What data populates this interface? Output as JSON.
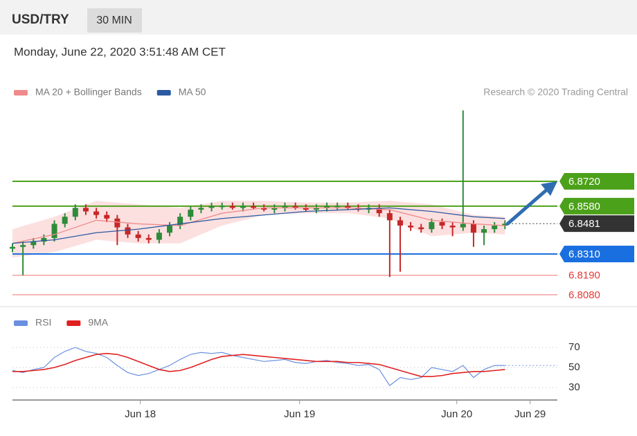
{
  "header": {
    "symbol": "USD/TRY",
    "interval": "30 MIN",
    "timestamp": "Monday, June 22, 2020 3:51:48 AM CET"
  },
  "chart_data": [
    {
      "type": "candlestick",
      "credit": "Research © 2020 Trading Central",
      "ylim": [
        6.8025,
        6.9157
      ],
      "legend": [
        {
          "name": "MA 20 + Bollinger Bands",
          "color": "#f08a8a"
        },
        {
          "name": "MA 50",
          "color": "#2a5aa0"
        }
      ],
      "up_color": "#2e8b3a",
      "down_color": "#c62828",
      "open": [
        6.834,
        6.835,
        6.836,
        6.838,
        6.84,
        6.848,
        6.852,
        6.857,
        6.855,
        6.853,
        6.851,
        6.846,
        6.842,
        6.84,
        6.839,
        6.843,
        6.847,
        6.852,
        6.856,
        6.857,
        6.858,
        6.858,
        6.857,
        6.858,
        6.857,
        6.856,
        6.857,
        6.858,
        6.857,
        6.856,
        6.857,
        6.858,
        6.858,
        6.857,
        6.856,
        6.857,
        6.854,
        6.85,
        6.847,
        6.846,
        6.845,
        6.849,
        6.847,
        6.846,
        6.848,
        6.843,
        6.845,
        6.847
      ],
      "high": [
        6.837,
        6.838,
        6.84,
        6.842,
        6.85,
        6.854,
        6.859,
        6.859,
        6.857,
        6.855,
        6.853,
        6.848,
        6.844,
        6.842,
        6.845,
        6.849,
        6.854,
        6.858,
        6.859,
        6.86,
        6.86,
        6.86,
        6.86,
        6.86,
        6.859,
        6.859,
        6.86,
        6.86,
        6.859,
        6.859,
        6.86,
        6.86,
        6.86,
        6.859,
        6.859,
        6.859,
        6.856,
        6.852,
        6.849,
        6.848,
        6.851,
        6.851,
        6.849,
        6.912,
        6.85,
        6.847,
        6.849,
        6.85
      ],
      "low": [
        6.832,
        6.819,
        6.834,
        6.836,
        6.838,
        6.846,
        6.85,
        6.853,
        6.851,
        6.849,
        6.836,
        6.84,
        6.838,
        6.837,
        6.837,
        6.841,
        6.845,
        6.85,
        6.854,
        6.855,
        6.856,
        6.856,
        6.855,
        6.856,
        6.855,
        6.854,
        6.855,
        6.856,
        6.855,
        6.854,
        6.855,
        6.856,
        6.856,
        6.855,
        6.854,
        6.852,
        6.818,
        6.821,
        6.844,
        6.843,
        6.843,
        6.845,
        6.841,
        6.844,
        6.835,
        6.836,
        6.843,
        6.845
      ],
      "close": [
        6.835,
        6.836,
        6.838,
        6.84,
        6.848,
        6.852,
        6.857,
        6.855,
        6.853,
        6.851,
        6.846,
        6.842,
        6.84,
        6.839,
        6.843,
        6.847,
        6.852,
        6.856,
        6.857,
        6.858,
        6.858,
        6.857,
        6.858,
        6.857,
        6.856,
        6.857,
        6.858,
        6.857,
        6.856,
        6.857,
        6.858,
        6.858,
        6.857,
        6.856,
        6.857,
        6.854,
        6.85,
        6.847,
        6.846,
        6.845,
        6.849,
        6.847,
        6.846,
        6.848,
        6.843,
        6.845,
        6.847,
        6.8481
      ],
      "lines_x": [
        0,
        4,
        8,
        12,
        16,
        20,
        24,
        28,
        32,
        36,
        40,
        44,
        47
      ],
      "ma20": [
        6.837,
        6.842,
        6.85,
        6.848,
        6.847,
        6.854,
        6.857,
        6.857,
        6.857,
        6.856,
        6.85,
        6.848,
        6.847
      ],
      "ma50": [
        6.837,
        6.839,
        6.843,
        6.845,
        6.848,
        6.851,
        6.853,
        6.855,
        6.856,
        6.857,
        6.855,
        6.852,
        6.851
      ],
      "band_upper": [
        6.845,
        6.852,
        6.861,
        6.859,
        6.857,
        6.861,
        6.861,
        6.86,
        6.86,
        6.861,
        6.859,
        6.853,
        6.852
      ],
      "band_lower": [
        6.829,
        6.832,
        6.839,
        6.837,
        6.837,
        6.847,
        6.853,
        6.854,
        6.854,
        6.851,
        6.841,
        6.843,
        6.842
      ],
      "levels": [
        {
          "value": 6.872,
          "label": "6.8720",
          "color": "#4ca11a",
          "style": "box"
        },
        {
          "value": 6.858,
          "label": "6.8580",
          "color": "#4ca11a",
          "style": "box"
        },
        {
          "value": 6.8481,
          "label": "6.8481",
          "color": "#333333",
          "style": "current"
        },
        {
          "value": 6.831,
          "label": "6.8310",
          "color": "#1a6fe0",
          "style": "box"
        },
        {
          "value": 6.819,
          "label": "6.8190",
          "color": "#e53935",
          "style": "text"
        },
        {
          "value": 6.808,
          "label": "6.8080",
          "color": "#e53935",
          "style": "text"
        }
      ]
    },
    {
      "type": "line",
      "ylim": [
        19.7,
        81.7
      ],
      "yticks": [
        30,
        50,
        70
      ],
      "xlim": [
        0,
        52
      ],
      "xticks": [
        {
          "value": 12.2,
          "label": "Jun 18"
        },
        {
          "value": 27.4,
          "label": "Jun 19"
        },
        {
          "value": 42.4,
          "label": "Jun 20"
        },
        {
          "value": 49.4,
          "label": "Jun 29"
        }
      ],
      "series": [
        {
          "name": "RSI",
          "color": "#6a8fe0",
          "values": [
            47,
            45,
            48,
            50,
            60,
            66,
            70,
            66,
            64,
            60,
            52,
            45,
            42,
            44,
            48,
            52,
            58,
            63,
            65,
            64,
            65,
            62,
            60,
            58,
            56,
            57,
            58,
            55,
            54,
            56,
            57,
            55,
            54,
            52,
            53,
            48,
            32,
            40,
            38,
            40,
            50,
            48,
            46,
            52,
            40,
            48,
            52,
            52
          ]
        },
        {
          "name": "9MA",
          "color": "#e02020",
          "values": [
            46,
            46,
            47,
            48,
            50,
            53,
            57,
            60,
            63,
            64,
            63,
            60,
            56,
            52,
            48,
            46,
            47,
            50,
            54,
            58,
            61,
            62,
            63,
            62,
            61,
            60,
            59,
            58,
            57,
            56,
            56,
            56,
            55,
            55,
            54,
            53,
            50,
            47,
            44,
            41,
            41,
            42,
            44,
            45,
            46,
            46,
            47,
            48
          ]
        }
      ]
    }
  ]
}
